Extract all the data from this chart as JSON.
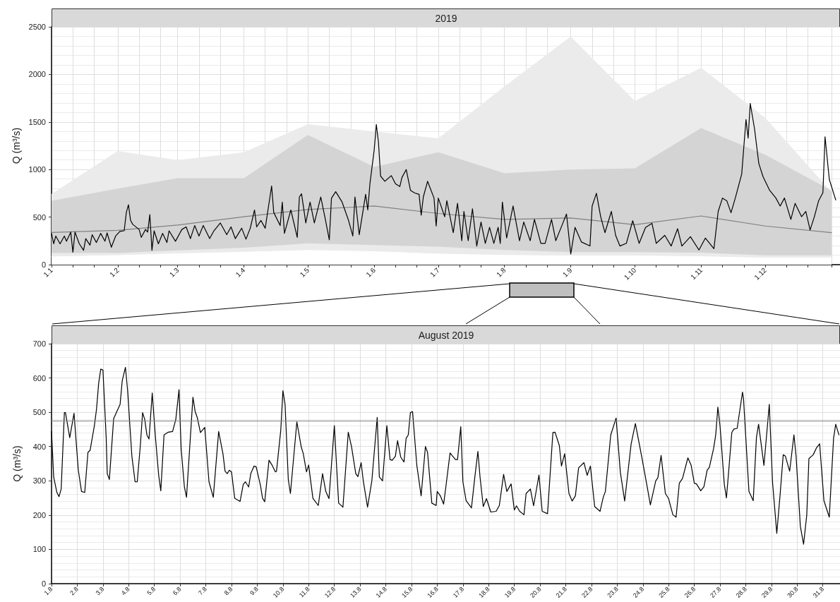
{
  "chart_data": [
    {
      "type": "line",
      "title": "2019",
      "ylabel": "Q (m³/s)",
      "grid": true,
      "xlim": [
        "2019-01-01",
        "2020-01-05"
      ],
      "ylim": [
        0,
        2500
      ],
      "yticks": [
        0,
        500,
        1000,
        1500,
        2000,
        2500
      ],
      "xticks": [
        {
          "value": "2019-01-01",
          "label": "1.1"
        },
        {
          "value": "2019-01-11",
          "label": null
        },
        {
          "value": "2019-01-21",
          "label": null
        },
        {
          "value": "2019-02-01",
          "label": "1.2"
        },
        {
          "value": "2019-02-11",
          "label": null
        },
        {
          "value": "2019-02-21",
          "label": null
        },
        {
          "value": "2019-03-01",
          "label": "1.3"
        },
        {
          "value": "2019-03-11",
          "label": null
        },
        {
          "value": "2019-03-21",
          "label": null
        },
        {
          "value": "2019-04-01",
          "label": "1.4"
        },
        {
          "value": "2019-04-11",
          "label": null
        },
        {
          "value": "2019-04-21",
          "label": null
        },
        {
          "value": "2019-05-01",
          "label": "1.5"
        },
        {
          "value": "2019-05-11",
          "label": null
        },
        {
          "value": "2019-05-21",
          "label": null
        },
        {
          "value": "2019-06-01",
          "label": "1.6"
        },
        {
          "value": "2019-06-11",
          "label": null
        },
        {
          "value": "2019-06-21",
          "label": null
        },
        {
          "value": "2019-07-01",
          "label": "1.7"
        },
        {
          "value": "2019-07-11",
          "label": null
        },
        {
          "value": "2019-07-21",
          "label": null
        },
        {
          "value": "2019-08-01",
          "label": "1.8"
        },
        {
          "value": "2019-08-11",
          "label": null
        },
        {
          "value": "2019-08-21",
          "label": null
        },
        {
          "value": "2019-09-01",
          "label": "1.9"
        },
        {
          "value": "2019-09-11",
          "label": null
        },
        {
          "value": "2019-09-21",
          "label": null
        },
        {
          "value": "2019-10-01",
          "label": "1.10"
        },
        {
          "value": "2019-10-11",
          "label": null
        },
        {
          "value": "2019-10-21",
          "label": null
        },
        {
          "value": "2019-11-01",
          "label": "1.11"
        },
        {
          "value": "2019-11-11",
          "label": null
        },
        {
          "value": "2019-11-21",
          "label": null
        },
        {
          "value": "2019-12-01",
          "label": "1.12"
        },
        {
          "value": "2019-12-11",
          "label": null
        },
        {
          "value": "2019-12-21",
          "label": null
        },
        {
          "value": "2020-01-01",
          "label": null
        }
      ],
      "series": [
        {
          "type": "area",
          "color": "#ebebeb",
          "x": [
            "2019-01-01",
            "2019-02-01",
            "2019-03-01",
            "2019-04-01",
            "2019-05-01",
            "2019-06-01",
            "2019-07-01",
            "2019-08-01",
            "2019-09-01",
            "2019-10-01",
            "2019-11-01",
            "2019-12-01",
            "2020-01-01"
          ],
          "values": [
            739,
            1191,
            1095,
            1177,
            1473,
            1396,
            1324,
            1870,
            2394,
            1716,
            2066,
            1540,
            760
          ]
        },
        {
          "type": "area",
          "color": "#ffffff",
          "x": [
            "2019-01-01",
            "2019-02-01",
            "2019-03-01",
            "2019-04-01",
            "2019-05-01",
            "2019-06-01",
            "2019-07-01",
            "2019-08-01",
            "2019-09-01",
            "2019-10-01",
            "2019-11-01",
            "2019-12-01",
            "2020-01-01"
          ],
          "values": [
            82,
            96,
            115,
            131,
            150,
            137,
            112,
            98,
            92,
            92,
            84,
            70,
            70
          ]
        },
        {
          "type": "line",
          "color": "#808080",
          "x": [
            "2019-01-01",
            "2019-02-01",
            "2019-03-01",
            "2019-04-01",
            "2019-05-01",
            "2019-06-01",
            "2019-07-01",
            "2019-08-01",
            "2019-09-01",
            "2019-10-01",
            "2019-11-01",
            "2019-12-01",
            "2020-01-01"
          ],
          "values": [
            339,
            361,
            416,
            504,
            580,
            616,
            538,
            476,
            490,
            420,
            512,
            406,
            336
          ],
          "upper": [
            671,
            799,
            909,
            909,
            1364,
            1027,
            1181,
            960,
            999,
            1013,
            1436,
            1156,
            780
          ],
          "lower": [
            123,
            123,
            150,
            178,
            224,
            205,
            190,
            154,
            132,
            132,
            126,
            98,
            98
          ]
        },
        {
          "color": "#000000",
          "x": [
            "2019-01-01",
            "2019-01-02",
            "2019-01-03",
            "2019-01-05",
            "2019-01-07",
            "2019-01-08",
            "2019-01-10",
            "2019-01-11",
            "2019-01-12",
            "2019-01-14",
            "2019-01-16",
            "2019-01-17",
            "2019-01-19",
            "2019-01-20",
            "2019-01-22",
            "2019-01-24",
            "2019-01-26",
            "2019-01-27",
            "2019-01-29",
            "2019-01-31",
            "2019-02-02",
            "2019-02-04",
            "2019-02-05",
            "2019-02-06",
            "2019-02-07",
            "2019-02-08",
            "2019-02-11",
            "2019-02-12",
            "2019-02-14",
            "2019-02-15",
            "2019-02-16",
            "2019-02-17",
            "2019-02-18",
            "2019-02-20",
            "2019-02-22",
            "2019-02-24",
            "2019-02-25",
            "2019-02-28",
            "2019-03-03",
            "2019-03-05",
            "2019-03-07",
            "2019-03-09",
            "2019-03-11",
            "2019-03-13",
            "2019-03-16",
            "2019-03-18",
            "2019-03-21",
            "2019-03-24",
            "2019-03-26",
            "2019-03-28",
            "2019-03-31",
            "2019-04-02",
            "2019-04-04",
            "2019-04-06",
            "2019-04-07",
            "2019-04-09",
            "2019-04-11",
            "2019-04-14",
            "2019-04-15",
            "2019-04-18",
            "2019-04-19",
            "2019-04-20",
            "2019-04-23",
            "2019-04-26",
            "2019-04-27",
            "2019-04-28",
            "2019-04-30",
            "2019-05-02",
            "2019-05-04",
            "2019-05-07",
            "2019-05-09",
            "2019-05-11",
            "2019-05-12",
            "2019-05-14",
            "2019-05-17",
            "2019-05-20",
            "2019-05-22",
            "2019-05-23",
            "2019-05-25",
            "2019-05-28",
            "2019-05-29",
            "2019-05-30",
            "2019-06-01",
            "2019-06-02",
            "2019-06-03",
            "2019-06-04",
            "2019-06-06",
            "2019-06-09",
            "2019-06-11",
            "2019-06-13",
            "2019-06-14",
            "2019-06-16",
            "2019-06-18",
            "2019-06-20",
            "2019-06-22",
            "2019-06-23",
            "2019-06-24",
            "2019-06-26",
            "2019-06-29",
            "2019-06-30",
            "2019-07-01",
            "2019-07-04",
            "2019-07-05",
            "2019-07-07",
            "2019-07-08",
            "2019-07-10",
            "2019-07-12",
            "2019-07-13",
            "2019-07-15",
            "2019-07-17",
            "2019-07-19",
            "2019-07-21",
            "2019-07-23",
            "2019-07-25",
            "2019-07-27",
            "2019-07-29",
            "2019-07-30",
            "2019-07-31",
            "2019-08-02",
            "2019-08-05",
            "2019-08-08",
            "2019-08-10",
            "2019-08-13",
            "2019-08-15",
            "2019-08-18",
            "2019-08-20",
            "2019-08-23",
            "2019-08-25",
            "2019-08-28",
            "2019-08-30",
            "2019-09-01",
            "2019-09-03",
            "2019-09-06",
            "2019-09-10",
            "2019-09-11",
            "2019-09-13",
            "2019-09-15",
            "2019-09-17",
            "2019-09-20",
            "2019-09-22",
            "2019-09-24",
            "2019-09-27",
            "2019-09-30",
            "2019-10-03",
            "2019-10-06",
            "2019-10-09",
            "2019-10-11",
            "2019-10-15",
            "2019-10-18",
            "2019-10-21",
            "2019-10-23",
            "2019-10-27",
            "2019-10-31",
            "2019-11-03",
            "2019-11-07",
            "2019-11-09",
            "2019-11-11",
            "2019-11-13",
            "2019-11-15",
            "2019-11-17",
            "2019-11-20",
            "2019-11-22",
            "2019-11-23",
            "2019-11-24",
            "2019-11-26",
            "2019-11-28",
            "2019-11-30",
            "2019-12-03",
            "2019-12-06",
            "2019-12-08",
            "2019-12-10",
            "2019-12-13",
            "2019-12-15",
            "2019-12-18",
            "2019-12-20",
            "2019-12-22",
            "2019-12-24",
            "2019-12-26",
            "2019-12-28",
            "2019-12-29",
            "2019-12-31",
            "2020-01-03"
          ],
          "values": [
            329,
            219,
            301,
            219,
            301,
            246,
            342,
            131,
            342,
            219,
            151,
            274,
            205,
            315,
            233,
            329,
            246,
            334,
            183,
            301,
            350,
            356,
            548,
            630,
            465,
            424,
            370,
            287,
            370,
            342,
            526,
            151,
            356,
            219,
            329,
            233,
            356,
            246,
            370,
            397,
            274,
            411,
            301,
            411,
            274,
            356,
            438,
            315,
            397,
            274,
            383,
            268,
            383,
            575,
            397,
            465,
            383,
            827,
            548,
            411,
            657,
            329,
            575,
            287,
            712,
            745,
            438,
            657,
            438,
            712,
            493,
            260,
            698,
            767,
            657,
            465,
            301,
            712,
            315,
            739,
            575,
            849,
            1205,
            1473,
            1287,
            931,
            876,
            936,
            849,
            821,
            917,
            999,
            780,
            753,
            739,
            520,
            712,
            876,
            700,
            406,
            700,
            504,
            672,
            448,
            336,
            644,
            252,
            560,
            252,
            588,
            196,
            448,
            224,
            392,
            224,
            392,
            224,
            658,
            280,
            616,
            252,
            448,
            252,
            476,
            224,
            224,
            476,
            252,
            420,
            532,
            112,
            392,
            238,
            196,
            616,
            750,
            504,
            336,
            560,
            308,
            196,
            224,
            462,
            224,
            392,
            434,
            224,
            308,
            196,
            378,
            196,
            294,
            154,
            280,
            168,
            560,
            700,
            672,
            546,
            700,
            952,
            1526,
            1330,
            1694,
            1428,
            1064,
            924,
            784,
            700,
            616,
            700,
            476,
            644,
            504,
            560,
            364,
            504,
            672,
            756,
            1344,
            896,
            680
          ]
        }
      ]
    },
    {
      "type": "line",
      "title": "August 2019",
      "ylabel": "Q (m³/s)",
      "grid": true,
      "xlim": [
        "2019-08-01T00:00",
        "2019-08-31T16:00"
      ],
      "ylim": [
        0,
        700
      ],
      "yticks": [
        0,
        100,
        200,
        300,
        400,
        500,
        600,
        700
      ],
      "xticks": [
        {
          "value": "2019-08-01",
          "label": "1.8"
        },
        {
          "value": "2019-08-02",
          "label": "2.8"
        },
        {
          "value": "2019-08-03",
          "label": "3.8"
        },
        {
          "value": "2019-08-04",
          "label": "4.8"
        },
        {
          "value": "2019-08-05",
          "label": "5.8"
        },
        {
          "value": "2019-08-06",
          "label": "6.8"
        },
        {
          "value": "2019-08-07",
          "label": "7.8"
        },
        {
          "value": "2019-08-08",
          "label": "8.8"
        },
        {
          "value": "2019-08-09",
          "label": "9.8"
        },
        {
          "value": "2019-08-10",
          "label": "10.8"
        },
        {
          "value": "2019-08-11",
          "label": "11.8"
        },
        {
          "value": "2019-08-12",
          "label": "12.8"
        },
        {
          "value": "2019-08-13",
          "label": "13.8"
        },
        {
          "value": "2019-08-14",
          "label": "14.8"
        },
        {
          "value": "2019-08-15",
          "label": "15.8"
        },
        {
          "value": "2019-08-16",
          "label": "16.8"
        },
        {
          "value": "2019-08-17",
          "label": "17.8"
        },
        {
          "value": "2019-08-18",
          "label": "18.8"
        },
        {
          "value": "2019-08-19",
          "label": "19.8"
        },
        {
          "value": "2019-08-20",
          "label": "20.8"
        },
        {
          "value": "2019-08-21",
          "label": "21.8"
        },
        {
          "value": "2019-08-22",
          "label": "22.8"
        },
        {
          "value": "2019-08-23",
          "label": "23.8"
        },
        {
          "value": "2019-08-24",
          "label": "24.8"
        },
        {
          "value": "2019-08-25",
          "label": "25.8"
        },
        {
          "value": "2019-08-26",
          "label": "26.8"
        },
        {
          "value": "2019-08-27",
          "label": "27.8"
        },
        {
          "value": "2019-08-28",
          "label": "28.8"
        },
        {
          "value": "2019-08-29",
          "label": "29.8"
        },
        {
          "value": "2019-08-30",
          "label": "30.8"
        },
        {
          "value": "2019-08-31",
          "label": "31.8"
        }
      ],
      "ref_lines": [
        {
          "axis": "y",
          "value": 475,
          "color": "#808080"
        }
      ],
      "series": [
        {
          "color": "#000000",
          "x": [
            "2019-08-01T00:00",
            "2019-08-01T02:00",
            "2019-08-01T05:00",
            "2019-08-01T07:00",
            "2019-08-01T09:00",
            "2019-08-01T12:00",
            "2019-08-01T13:00",
            "2019-08-01T17:00",
            "2019-08-01T21:00",
            "2019-08-02T01:00",
            "2019-08-02T04:00",
            "2019-08-02T07:00",
            "2019-08-02T10:00",
            "2019-08-02T12:00",
            "2019-08-02T16:00",
            "2019-08-02T18:00",
            "2019-08-02T20:00",
            "2019-08-02T22:00",
            "2019-08-03T00:00",
            "2019-08-03T03:00",
            "2019-08-03T04:00",
            "2019-08-03T06:00",
            "2019-08-03T10:00",
            "2019-08-03T16:00",
            "2019-08-03T18:00",
            "2019-08-03T21:00",
            "2019-08-03T23:00",
            "2019-08-04T03:00",
            "2019-08-04T06:00",
            "2019-08-04T08:00",
            "2019-08-04T11:00",
            "2019-08-04T13:00",
            "2019-08-04T15:00",
            "2019-08-04T17:00",
            "2019-08-04T19:00",
            "2019-08-04T22:00",
            "2019-08-05T01:00",
            "2019-08-05T04:00",
            "2019-08-05T06:00",
            "2019-08-05T09:00",
            "2019-08-05T13:00",
            "2019-08-05T17:00",
            "2019-08-05T20:00",
            "2019-08-05T23:00",
            "2019-08-06T01:00",
            "2019-08-06T04:00",
            "2019-08-06T06:00",
            "2019-08-06T12:00",
            "2019-08-06T14:00",
            "2019-08-06T16:00",
            "2019-08-06T19:00",
            "2019-08-06T23:00",
            "2019-08-07T03:00",
            "2019-08-07T07:00",
            "2019-08-07T12:00",
            "2019-08-07T16:00",
            "2019-08-07T18:00",
            "2019-08-07T20:00",
            "2019-08-07T22:00",
            "2019-08-08T00:00",
            "2019-08-08T03:00",
            "2019-08-08T08:00",
            "2019-08-08T11:00",
            "2019-08-08T13:00",
            "2019-08-08T16:00",
            "2019-08-08T18:00",
            "2019-08-08T21:00",
            "2019-08-08T23:00",
            "2019-08-09T03:00",
            "2019-08-09T05:00",
            "2019-08-09T07:00",
            "2019-08-09T11:00",
            "2019-08-09T14:00",
            "2019-08-09T17:00",
            "2019-08-09T18:00",
            "2019-08-09T22:00",
            "2019-08-10T00:00",
            "2019-08-10T02:00",
            "2019-08-10T05:00",
            "2019-08-10T07:00",
            "2019-08-10T13:00",
            "2019-08-10T17:00",
            "2019-08-10T19:00",
            "2019-08-10T22:00",
            "2019-08-11T00:00",
            "2019-08-11T04:00",
            "2019-08-11T09:00",
            "2019-08-11T13:00",
            "2019-08-11T16:00",
            "2019-08-11T19:00",
            "2019-08-12T00:00",
            "2019-08-12T04:00",
            "2019-08-12T08:00",
            "2019-08-12T13:00",
            "2019-08-12T16:00",
            "2019-08-12T20:00",
            "2019-08-12T22:00",
            "2019-08-13T01:00",
            "2019-08-13T03:00",
            "2019-08-13T07:00",
            "2019-08-13T11:00",
            "2019-08-13T16:00",
            "2019-08-13T18:00",
            "2019-08-13T21:00",
            "2019-08-14T01:00",
            "2019-08-14T04:00",
            "2019-08-14T06:00",
            "2019-08-14T09:00",
            "2019-08-14T11:00",
            "2019-08-14T14:00",
            "2019-08-14T17:00",
            "2019-08-14T19:00",
            "2019-08-14T21:00",
            "2019-08-14T23:00",
            "2019-08-15T01:00",
            "2019-08-15T05:00",
            "2019-08-15T09:00",
            "2019-08-15T13:00",
            "2019-08-15T15:00",
            "2019-08-15T19:00",
            "2019-08-15T23:00",
            "2019-08-16T00:00",
            "2019-08-16T03:00",
            "2019-08-16T06:00",
            "2019-08-16T08:00",
            "2019-08-16T12:00",
            "2019-08-16T17:00",
            "2019-08-16T19:00",
            "2019-08-16T22:00",
            "2019-08-17T00:00",
            "2019-08-17T03:00",
            "2019-08-17T08:00",
            "2019-08-17T11:00",
            "2019-08-17T14:00",
            "2019-08-17T16:00",
            "2019-08-17T19:00",
            "2019-08-17T22:00",
            "2019-08-18T02:00",
            "2019-08-18T07:00",
            "2019-08-18T10:00",
            "2019-08-18T14:00",
            "2019-08-18T17:00",
            "2019-08-18T21:00",
            "2019-08-19T00:00",
            "2019-08-19T02:00",
            "2019-08-19T05:00",
            "2019-08-19T09:00",
            "2019-08-19T11:00",
            "2019-08-19T15:00",
            "2019-08-19T18:00",
            "2019-08-19T23:00",
            "2019-08-20T02:00",
            "2019-08-20T07:00",
            "2019-08-20T12:00",
            "2019-08-20T14:00",
            "2019-08-20T18:00",
            "2019-08-20T20:00",
            "2019-08-20T23:00",
            "2019-08-21T03:00",
            "2019-08-21T06:00",
            "2019-08-21T09:00",
            "2019-08-21T12:00",
            "2019-08-21T17:00",
            "2019-08-21T20:00",
            "2019-08-21T23:00",
            "2019-08-22T03:00",
            "2019-08-22T08:00",
            "2019-08-22T11:00",
            "2019-08-22T13:00",
            "2019-08-22T18:00",
            "2019-08-22T23:00",
            "2019-08-23T03:00",
            "2019-08-23T07:00",
            "2019-08-23T13:00",
            "2019-08-23T17:00",
            "2019-08-23T23:00",
            "2019-08-24T04:00",
            "2019-08-24T07:00",
            "2019-08-24T12:00",
            "2019-08-24T14:00",
            "2019-08-24T17:00",
            "2019-08-24T21:00",
            "2019-08-25T00:00",
            "2019-08-25T04:00",
            "2019-08-25T07:00",
            "2019-08-25T10:00",
            "2019-08-25T13:00",
            "2019-08-25T18:00",
            "2019-08-25T21:00",
            "2019-08-26T00:00",
            "2019-08-26T02:00",
            "2019-08-26T06:00",
            "2019-08-26T09:00",
            "2019-08-26T12:00",
            "2019-08-26T14:00",
            "2019-08-26T18:00",
            "2019-08-26T20:00",
            "2019-08-26T22:00",
            "2019-08-27T00:00",
            "2019-08-27T04:00",
            "2019-08-27T06:00",
            "2019-08-27T08:00",
            "2019-08-27T11:00",
            "2019-08-27T13:00",
            "2019-08-27T16:00",
            "2019-08-27T21:00",
            "2019-08-27T22:00",
            "2019-08-28T03:00",
            "2019-08-28T07:00",
            "2019-08-28T10:00",
            "2019-08-28T12:00",
            "2019-08-28T17:00",
            "2019-08-28T22:00",
            "2019-08-29T01:00",
            "2019-08-29T05:00",
            "2019-08-29T08:00",
            "2019-08-29T11:00",
            "2019-08-29T13:00",
            "2019-08-29T17:00",
            "2019-08-29T21:00",
            "2019-08-29T23:00",
            "2019-08-30T03:00",
            "2019-08-30T06:00",
            "2019-08-30T09:00",
            "2019-08-30T11:00",
            "2019-08-30T15:00",
            "2019-08-30T18:00",
            "2019-08-30T21:00",
            "2019-08-31T01:00",
            "2019-08-31T06:00",
            "2019-08-31T10:00",
            "2019-08-31T12:00",
            "2019-08-31T15:00"
          ],
          "values": [
            444,
            311,
            266,
            254,
            276,
            499,
            499,
            426,
            497,
            331,
            269,
            266,
            383,
            389,
            461,
            509,
            585,
            626,
            623,
            427,
            321,
            304,
            482,
            523,
            592,
            631,
            564,
            372,
            297,
            297,
            407,
            499,
            479,
            434,
            422,
            556,
            427,
            317,
            271,
            434,
            442,
            444,
            479,
            566,
            393,
            283,
            252,
            544,
            503,
            485,
            441,
            456,
            297,
            252,
            444,
            379,
            328,
            321,
            331,
            326,
            249,
            240,
            290,
            297,
            282,
            321,
            343,
            341,
            287,
            249,
            239,
            360,
            345,
            326,
            328,
            448,
            563,
            523,
            304,
            263,
            472,
            400,
            379,
            326,
            346,
            249,
            228,
            321,
            269,
            248,
            461,
            235,
            223,
            442,
            400,
            321,
            312,
            353,
            300,
            223,
            300,
            485,
            311,
            300,
            461,
            362,
            360,
            372,
            417,
            369,
            355,
            424,
            434,
            499,
            502,
            345,
            256,
            400,
            383,
            235,
            228,
            269,
            256,
            232,
            280,
            381,
            362,
            362,
            458,
            297,
            242,
            221,
            307,
            386,
            311,
            225,
            248,
            209,
            211,
            228,
            319,
            269,
            291,
            215,
            227,
            211,
            201,
            263,
            276,
            227,
            317,
            211,
            204,
            441,
            442,
            403,
            343,
            379,
            263,
            241,
            256,
            338,
            353,
            316,
            343,
            225,
            211,
            252,
            269,
            434,
            483,
            324,
            241,
            407,
            467,
            369,
            283,
            230,
            300,
            309,
            374,
            263,
            248,
            201,
            194,
            293,
            307,
            367,
            346,
            293,
            291,
            271,
            283,
            331,
            339,
            394,
            434,
            515,
            461,
            290,
            250,
            324,
            441,
            451,
            453,
            559,
            537,
            269,
            242,
            427,
            465,
            345,
            523,
            297,
            147,
            256,
            376,
            372,
            328,
            434,
            372,
            167,
            115,
            201,
            365,
            376,
            396,
            408,
            242,
            194,
            424,
            465,
            434
          ]
        }
      ]
    }
  ]
}
